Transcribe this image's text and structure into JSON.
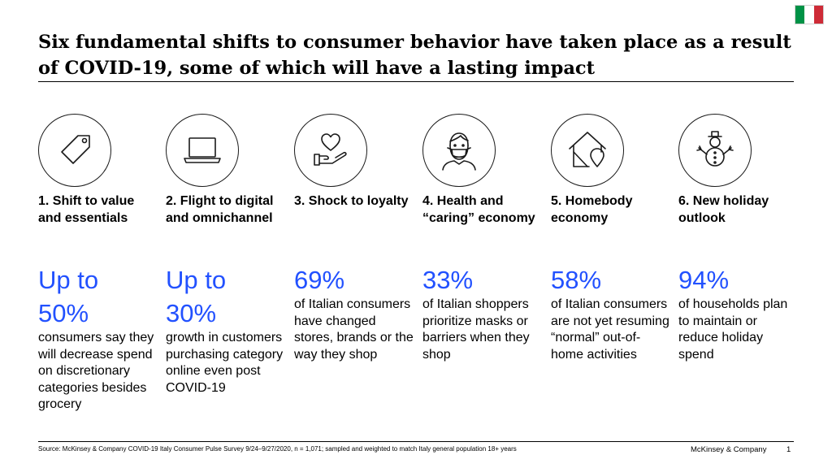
{
  "title": "Six fundamental shifts to consumer behavior have taken place as a result of COVID-19, some of which will have a lasting impact",
  "flag_colors": [
    "#009246",
    "#ffffff",
    "#ce2b37"
  ],
  "accent_color": "#2251ff",
  "columns": [
    {
      "icon": "price-tag-icon",
      "heading": "1. Shift to value and essentials",
      "value": "Up to 50%",
      "description": "consumers say they will decrease spend on discretionary categories besides grocery"
    },
    {
      "icon": "laptop-icon",
      "heading": "2. Flight to digital and omnichannel",
      "value": "Up to 30%",
      "description": "growth in customers purchasing category online even post COVID-19"
    },
    {
      "icon": "heart-in-hand-icon",
      "heading": "3. Shock to loyalty",
      "value": "69%",
      "description": "of Italian consumers have changed stores, brands or the way they shop"
    },
    {
      "icon": "masked-person-icon",
      "heading": "4. Health and “caring” economy",
      "value": "33%",
      "description": "of Italian shoppers prioritize masks or barriers when they shop"
    },
    {
      "icon": "house-location-icon",
      "heading": "5. Homebody economy",
      "value": "58%",
      "description": "of Italian consumers are not yet resuming “normal” out-of-home activities"
    },
    {
      "icon": "snowman-icon",
      "heading": "6. New holiday outlook",
      "value": "94%",
      "description": "of households plan to maintain or reduce holiday spend"
    }
  ],
  "footer": {
    "source": "Source: McKinsey & Company COVID-19 Italy Consumer Pulse Survey 9/24–9/27/2020, n = 1,071; sampled and weighted to match Italy general population 18+ years",
    "brand": "McKinsey & Company",
    "page_number": "1"
  }
}
